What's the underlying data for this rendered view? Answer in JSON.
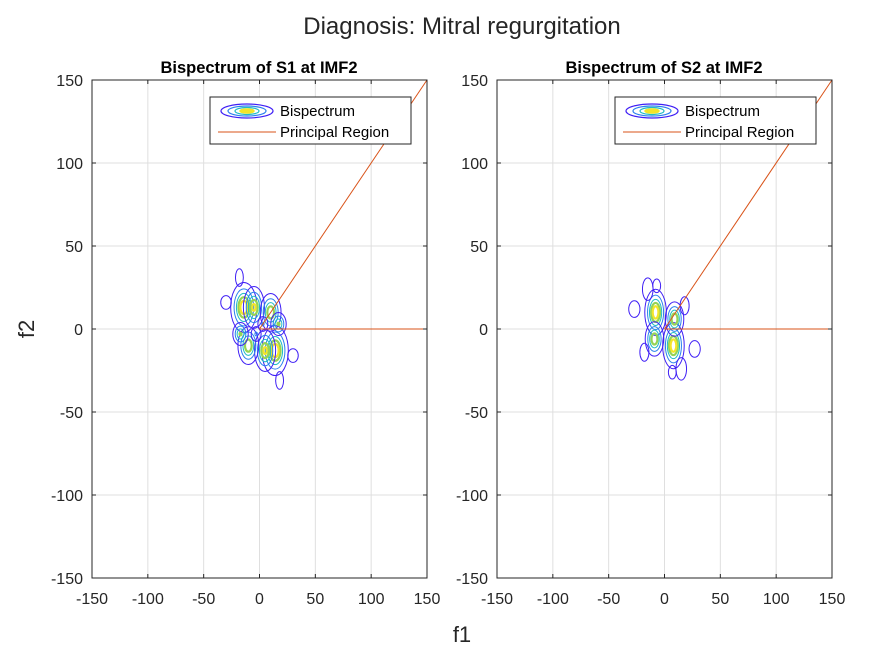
{
  "figure": {
    "suptitle": "Diagnosis: Mitral regurgitation",
    "xlabel": "f1",
    "ylabel": "f2"
  },
  "chart_data": [
    {
      "type": "contour",
      "title": "Bispectrum of S1 at IMF2",
      "xlim": [
        -150,
        150
      ],
      "ylim": [
        -150,
        150
      ],
      "xticks": [
        -150,
        -100,
        -50,
        0,
        50,
        100,
        150
      ],
      "yticks": [
        -150,
        -100,
        -50,
        0,
        50,
        100,
        150
      ],
      "grid": true,
      "legend": {
        "placement": "top-right",
        "entries": [
          "Bispectrum",
          "Principal Region"
        ]
      },
      "principal_region": {
        "color": "#d95319",
        "lines": [
          [
            [
              0,
              0
            ],
            [
              150,
              150
            ]
          ],
          [
            [
              0,
              0
            ],
            [
              150,
              0
            ]
          ]
        ]
      },
      "contour_colors": [
        "#3f1ff5",
        "#2a80ee",
        "#1fbcc4",
        "#95d454",
        "#f3e52a"
      ],
      "blobs": [
        {
          "x": -14,
          "y": 13,
          "sx": 5.5,
          "sy": 7,
          "peak": 1.0
        },
        {
          "x": 14,
          "y": -13,
          "sx": 5.5,
          "sy": 7,
          "peak": 1.0
        },
        {
          "x": -5,
          "y": 13,
          "sx": 4.5,
          "sy": 6,
          "peak": 0.9
        },
        {
          "x": 5,
          "y": -13,
          "sx": 4.5,
          "sy": 6,
          "peak": 0.9
        },
        {
          "x": 10,
          "y": 10,
          "sx": 4.5,
          "sy": 5.5,
          "peak": 0.85
        },
        {
          "x": -10,
          "y": -10,
          "sx": 4.5,
          "sy": 5.5,
          "peak": 0.85
        },
        {
          "x": 17,
          "y": 3,
          "sx": 3.5,
          "sy": 3.5,
          "peak": 0.7
        },
        {
          "x": -17,
          "y": -3,
          "sx": 3.5,
          "sy": 3.5,
          "peak": 0.7
        },
        {
          "x": -18,
          "y": 31,
          "sx": 3,
          "sy": 4.5,
          "peak": 0.2
        },
        {
          "x": 18,
          "y": -31,
          "sx": 3,
          "sy": 4.5,
          "peak": 0.2
        },
        {
          "x": -30,
          "y": 16,
          "sx": 4,
          "sy": 3.5,
          "peak": 0.2
        },
        {
          "x": 30,
          "y": -16,
          "sx": 4,
          "sy": 3.5,
          "peak": 0.2
        },
        {
          "x": 3,
          "y": 3,
          "sx": 3,
          "sy": 3,
          "peak": 0.3
        },
        {
          "x": -3,
          "y": -3,
          "sx": 3,
          "sy": 3,
          "peak": 0.3
        }
      ]
    },
    {
      "type": "contour",
      "title": "Bispectrum of S2 at IMF2",
      "xlim": [
        -150,
        150
      ],
      "ylim": [
        -150,
        150
      ],
      "xticks": [
        -150,
        -100,
        -50,
        0,
        50,
        100,
        150
      ],
      "yticks": [
        -150,
        -100,
        -50,
        0,
        50,
        100,
        150
      ],
      "grid": true,
      "legend": {
        "placement": "top-right",
        "entries": [
          "Bispectrum",
          "Principal Region"
        ]
      },
      "principal_region": {
        "color": "#d95319",
        "lines": [
          [
            [
              0,
              0
            ],
            [
              150,
              150
            ]
          ],
          [
            [
              0,
              0
            ],
            [
              150,
              0
            ]
          ]
        ]
      },
      "contour_colors": [
        "#3f1ff5",
        "#2a80ee",
        "#1fbcc4",
        "#95d454",
        "#f3e52a"
      ],
      "blobs": [
        {
          "x": -8,
          "y": 10,
          "sx": 4.5,
          "sy": 6.5,
          "peak": 1.0
        },
        {
          "x": 8,
          "y": -10,
          "sx": 4.5,
          "sy": 6.5,
          "peak": 1.0
        },
        {
          "x": 9,
          "y": 6,
          "sx": 4,
          "sy": 5,
          "peak": 0.85
        },
        {
          "x": -9,
          "y": -6,
          "sx": 4,
          "sy": 5,
          "peak": 0.85
        },
        {
          "x": -15,
          "y": 24,
          "sx": 3.5,
          "sy": 5,
          "peak": 0.25
        },
        {
          "x": 15,
          "y": -24,
          "sx": 3.5,
          "sy": 5,
          "peak": 0.25
        },
        {
          "x": -27,
          "y": 12,
          "sx": 4,
          "sy": 4,
          "peak": 0.22
        },
        {
          "x": 27,
          "y": -12,
          "sx": 4,
          "sy": 4,
          "peak": 0.22
        },
        {
          "x": 18,
          "y": 14,
          "sx": 3,
          "sy": 4,
          "peak": 0.25
        },
        {
          "x": -18,
          "y": -14,
          "sx": 3,
          "sy": 4,
          "peak": 0.25
        },
        {
          "x": 7,
          "y": -26,
          "sx": 3,
          "sy": 3.5,
          "peak": 0.2
        },
        {
          "x": -7,
          "y": 26,
          "sx": 3,
          "sy": 3.5,
          "peak": 0.2
        }
      ]
    }
  ]
}
